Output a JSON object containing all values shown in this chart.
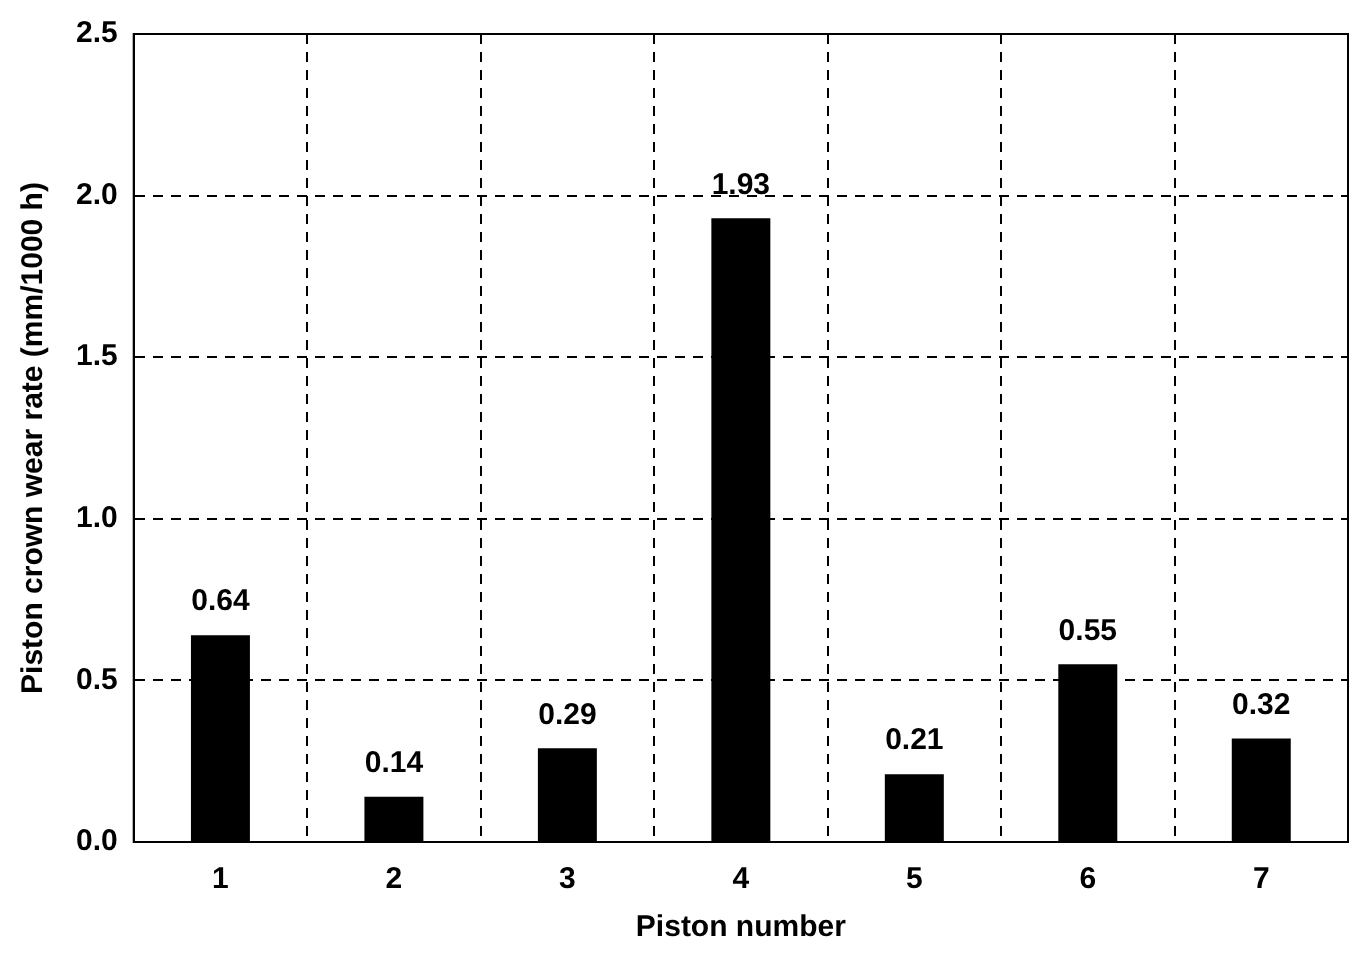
{
  "chart_data": {
    "type": "bar",
    "xlabel": "Piston number",
    "ylabel": "Piston crown wear rate (mm/1000 h)",
    "categories": [
      "1",
      "2",
      "3",
      "4",
      "5",
      "6",
      "7"
    ],
    "values": [
      0.64,
      0.14,
      0.29,
      1.93,
      0.21,
      0.55,
      0.32
    ],
    "color": "#000000",
    "ylim": [
      0,
      2.5
    ],
    "yticks": [
      {
        "value": 0,
        "label": "0.0"
      },
      {
        "value": 0.5,
        "label": "0.5"
      },
      {
        "value": 1,
        "label": "1.0"
      },
      {
        "value": 1.5,
        "label": "1.5"
      },
      {
        "value": 2,
        "label": "2.0"
      },
      {
        "value": 2.5,
        "label": "2.5"
      }
    ],
    "grid": true,
    "data_labels": true
  }
}
